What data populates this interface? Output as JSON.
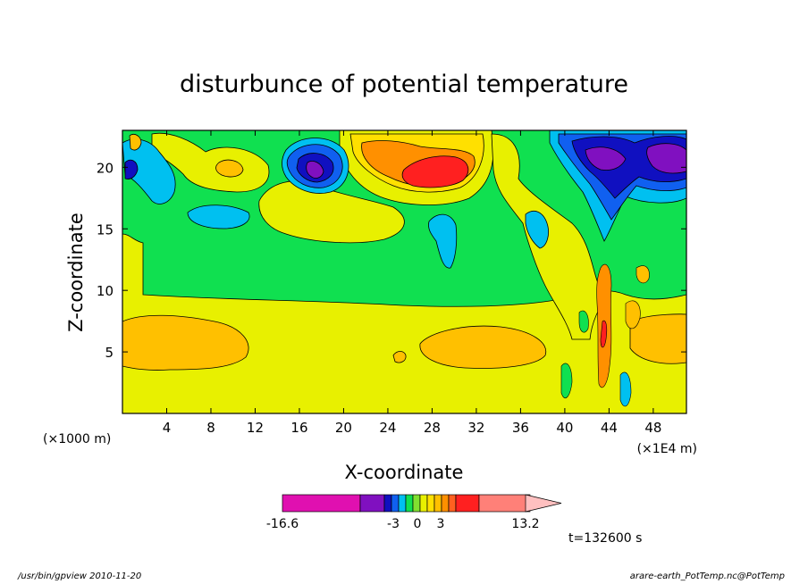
{
  "chart_data": {
    "type": "heatmap",
    "title": "disturbunce of potential temperature",
    "xlabel": "X-coordinate",
    "ylabel": "Z-coordinate",
    "x_unit_left": "(×1000 m)",
    "x_unit_right": "(×1E4 m)",
    "xlim": [
      0,
      51
    ],
    "ylim": [
      0,
      23
    ],
    "xticks": [
      4,
      8,
      12,
      16,
      20,
      24,
      28,
      32,
      36,
      40,
      44,
      48
    ],
    "yticks": [
      5,
      10,
      15,
      20
    ],
    "colorbar": {
      "min": -16.6,
      "max": 13.2,
      "tick_labels": [
        "-16.6",
        "-3",
        "0",
        "3",
        "13.2"
      ],
      "colors": [
        "#e010b0",
        "#8010c0",
        "#1010c0",
        "#1060f0",
        "#00c0f0",
        "#10e050",
        "#80e030",
        "#e8f000",
        "#ffe000",
        "#ffc000",
        "#ff9000",
        "#ff6020",
        "#ff2020",
        "#ff8078",
        "#ffc0c0"
      ],
      "extend": "max"
    },
    "time_label": "t=132600 s",
    "regions": [
      {
        "kind": "background",
        "color": "#e8f000"
      },
      {
        "kind": "band",
        "name": "upper-green",
        "color": "#10e050",
        "z": [
          9,
          16
        ]
      },
      {
        "kind": "blob",
        "name": "low-left-orange",
        "color": "#ffc000",
        "x": 6,
        "z": 5.5
      },
      {
        "kind": "blob",
        "name": "low-mid-orange",
        "color": "#ffc000",
        "x": 29,
        "z": 5.3
      },
      {
        "kind": "blob",
        "name": "low-right-orange",
        "color": "#ffc000",
        "x": 48,
        "z": 6
      },
      {
        "kind": "blob",
        "name": "upper-yellow-left",
        "color": "#e8f000",
        "x": 10,
        "z": 20
      },
      {
        "kind": "blob",
        "name": "orange-small",
        "color": "#ffc000",
        "x": 10,
        "z": 20.5
      },
      {
        "kind": "blob",
        "name": "cyan-mid-left",
        "color": "#00c0f0",
        "x": 10,
        "z": 16.3
      },
      {
        "kind": "blob",
        "name": "blue-cold-core",
        "color": "#1010c0",
        "x": 17.5,
        "z": 20.4
      },
      {
        "kind": "blob",
        "name": "purple-core",
        "color": "#8010c0",
        "x": 17.6,
        "z": 20.1
      },
      {
        "kind": "blob",
        "name": "yellow-mid",
        "color": "#e8f000",
        "x": 19,
        "z": 16.2
      },
      {
        "kind": "blob",
        "name": "warm-ridge-orange",
        "color": "#ff9000",
        "x": 27,
        "z": 20.5
      },
      {
        "kind": "blob",
        "name": "warm-core-red",
        "color": "#ff2020",
        "x": 28.5,
        "z": 19.5
      },
      {
        "kind": "blob",
        "name": "cyan-upper-left",
        "color": "#00c0f0",
        "x": 2,
        "z": 19
      },
      {
        "kind": "blob",
        "name": "cyan-right-column",
        "color": "#00c0f0",
        "x": 37,
        "z": 15
      },
      {
        "kind": "blob",
        "name": "wave-blue",
        "color": "#1010c0",
        "x": 47,
        "z": 20.5
      },
      {
        "kind": "blob",
        "name": "wave-purple",
        "color": "#8010c0",
        "x": 47,
        "z": 20.5
      }
    ]
  },
  "footer": {
    "left": "/usr/bin/gpview   2010-11-20",
    "right": "arare-earth_PotTemp.nc@PotTemp"
  }
}
